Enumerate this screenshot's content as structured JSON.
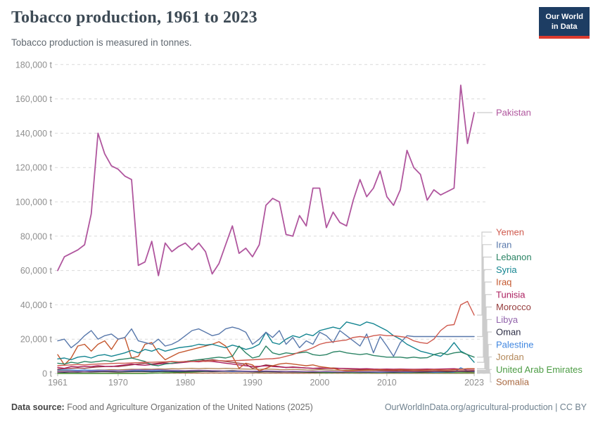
{
  "header": {
    "title": "Tobacco production, 1961 to 2023",
    "subtitle": "Tobacco production is measured in tonnes.",
    "logo": {
      "line1": "Our World",
      "line2": "in Data"
    }
  },
  "footer": {
    "source_label": "Data source:",
    "source_text": "Food and Agriculture Organization of the United Nations (2025)",
    "attribution": "OurWorldInData.org/agricultural-production | CC BY"
  },
  "chart_data": {
    "type": "line",
    "title": "Tobacco production, 1961 to 2023",
    "xlabel": "",
    "ylabel": "",
    "unit": "t",
    "ylim": [
      0,
      180000
    ],
    "grid": true,
    "grid_style": "dashed",
    "legend_position": "right",
    "y_ticks": [
      0,
      20000,
      40000,
      60000,
      80000,
      100000,
      120000,
      140000,
      160000,
      180000
    ],
    "x_ticks": [
      1961,
      1970,
      1980,
      1990,
      2000,
      2010,
      2023
    ],
    "years": [
      1961,
      1962,
      1963,
      1964,
      1965,
      1966,
      1967,
      1968,
      1969,
      1970,
      1971,
      1972,
      1973,
      1974,
      1975,
      1976,
      1977,
      1978,
      1979,
      1980,
      1981,
      1982,
      1983,
      1984,
      1985,
      1986,
      1987,
      1988,
      1989,
      1990,
      1991,
      1992,
      1993,
      1994,
      1995,
      1996,
      1997,
      1998,
      1999,
      2000,
      2001,
      2002,
      2003,
      2004,
      2005,
      2006,
      2007,
      2008,
      2009,
      2010,
      2011,
      2012,
      2013,
      2014,
      2015,
      2016,
      2017,
      2018,
      2019,
      2020,
      2021,
      2022,
      2023
    ],
    "series": [
      {
        "name": "Pakistan",
        "color": "#b0569e",
        "values": [
          60000,
          68000,
          70000,
          72000,
          75000,
          93000,
          140000,
          128000,
          121000,
          119000,
          115000,
          113000,
          63000,
          65000,
          77000,
          57000,
          76000,
          71000,
          74000,
          76000,
          72000,
          76000,
          71000,
          58000,
          64000,
          75000,
          86000,
          70000,
          73000,
          68000,
          75000,
          98000,
          102000,
          100000,
          81000,
          80000,
          92000,
          86000,
          108000,
          108000,
          85000,
          94000,
          88000,
          86000,
          101000,
          113000,
          103000,
          108000,
          118000,
          103000,
          98000,
          107000,
          130000,
          120000,
          116000,
          101000,
          107000,
          104000,
          106000,
          108000,
          168000,
          134000,
          152000
        ]
      },
      {
        "name": "Yemen",
        "color": "#cf5a4e",
        "values": [
          4500,
          4800,
          5000,
          5200,
          5000,
          5300,
          5500,
          5600,
          5800,
          6000,
          6000,
          6200,
          6300,
          6500,
          6500,
          6700,
          6800,
          7000,
          6800,
          7000,
          7000,
          7200,
          7000,
          7300,
          7500,
          7300,
          7500,
          7600,
          7800,
          8000,
          8200,
          8500,
          8600,
          9000,
          10000,
          11000,
          12500,
          13500,
          15000,
          17000,
          18000,
          18500,
          19000,
          19500,
          21000,
          21500,
          21000,
          22000,
          22500,
          22000,
          22000,
          21500,
          21000,
          19000,
          18000,
          17500,
          20000,
          25000,
          28000,
          28500,
          40000,
          42000,
          34000
        ]
      },
      {
        "name": "Iran",
        "color": "#5878ab",
        "values": [
          19000,
          20000,
          15000,
          18000,
          22000,
          25000,
          20000,
          22000,
          23000,
          20000,
          21000,
          26000,
          19000,
          18000,
          17000,
          20000,
          16000,
          17000,
          19000,
          22000,
          25000,
          26000,
          24000,
          22000,
          23000,
          26000,
          27000,
          26000,
          24000,
          17000,
          20000,
          24000,
          21000,
          25000,
          17000,
          21000,
          15000,
          19000,
          17000,
          24000,
          22000,
          18000,
          25000,
          22000,
          19000,
          16000,
          23000,
          12000,
          21500,
          16000,
          10000,
          18000,
          22000,
          21500,
          21500,
          21500,
          21500,
          21500,
          21500,
          21500,
          21500,
          21500,
          21500
        ]
      },
      {
        "name": "Lebanon",
        "color": "#2c8465",
        "values": [
          6000,
          5500,
          6500,
          6000,
          7000,
          6500,
          7000,
          7500,
          7000,
          8000,
          8500,
          9000,
          8000,
          7000,
          5000,
          4500,
          5500,
          6000,
          6500,
          7000,
          7500,
          8000,
          8500,
          9000,
          9500,
          9000,
          10000,
          16000,
          12000,
          9000,
          10000,
          16000,
          12000,
          11000,
          12000,
          11500,
          12000,
          12500,
          11000,
          10500,
          11000,
          12500,
          13000,
          12000,
          11500,
          11000,
          11500,
          10500,
          10000,
          9500,
          9500,
          9500,
          9000,
          9500,
          9000,
          9200,
          11000,
          12000,
          11000,
          12000,
          12500,
          11000,
          9500
        ]
      },
      {
        "name": "Syria",
        "color": "#148591",
        "values": [
          8500,
          9000,
          8000,
          9500,
          10000,
          9000,
          10500,
          11000,
          10000,
          11000,
          12000,
          13500,
          12000,
          14000,
          13000,
          14500,
          13000,
          14000,
          15000,
          15500,
          16000,
          17000,
          16500,
          17000,
          16000,
          15000,
          16500,
          15500,
          14000,
          15000,
          17000,
          24000,
          18000,
          17000,
          20000,
          22000,
          21000,
          23000,
          22000,
          25000,
          26000,
          27000,
          26000,
          30000,
          29000,
          28000,
          30000,
          29000,
          27000,
          25000,
          22000,
          20000,
          17000,
          15000,
          13000,
          12000,
          11000,
          10000,
          13000,
          18000,
          13000,
          11000,
          6500
        ]
      },
      {
        "name": "Iraq",
        "color": "#c4572e",
        "values": [
          11000,
          5000,
          9000,
          16000,
          17000,
          13000,
          17000,
          19000,
          14000,
          20000,
          21000,
          9000,
          10000,
          17000,
          18000,
          12000,
          8000,
          10000,
          12000,
          13000,
          14000,
          15000,
          16000,
          17000,
          18500,
          16000,
          10000,
          3000,
          6000,
          5000,
          1500,
          3000,
          4500,
          5500,
          6000,
          5500,
          5000,
          4500,
          5000,
          4000,
          3500,
          3000,
          2000,
          1500,
          1500,
          1800,
          2000,
          2000,
          2200,
          2000,
          2000,
          2200,
          2000,
          2100,
          2000,
          2000,
          2200,
          2100,
          2000,
          2200,
          2500,
          2800,
          2800
        ]
      },
      {
        "name": "Tunisia",
        "color": "#ab1d5e",
        "values": [
          3500,
          3000,
          4000,
          3800,
          4200,
          4000,
          4500,
          4200,
          4000,
          4500,
          5000,
          5500,
          5000,
          4800,
          5200,
          5500,
          6000,
          5800,
          6200,
          6500,
          7000,
          6800,
          7200,
          7000,
          6500,
          6000,
          5500,
          5000,
          4500,
          4000,
          4200,
          4500,
          4000,
          3800,
          3500,
          3600,
          3400,
          3200,
          3000,
          3200,
          3000,
          2800,
          3000,
          2900,
          2800,
          2700,
          2800,
          2600,
          2500,
          2600,
          2500,
          2600,
          2500,
          2400,
          2500,
          2600,
          2500,
          2600,
          2700,
          2800,
          2500,
          2500,
          2600
        ]
      },
      {
        "name": "Morocco",
        "color": "#953d3d",
        "values": [
          2500,
          2800,
          3000,
          3200,
          3000,
          3500,
          3800,
          4000,
          4200,
          4000,
          4500,
          5000,
          5500,
          6000,
          5500,
          6000,
          6500,
          7000,
          6500,
          7000,
          7500,
          8000,
          7500,
          8000,
          7500,
          7000,
          6500,
          6000,
          5500,
          3000,
          4000,
          5000,
          4500,
          4000,
          3500,
          3800,
          3500,
          3200,
          3000,
          2800,
          3000,
          3200,
          3000,
          2800,
          2500,
          2300,
          2200,
          2000,
          1800,
          1700,
          1600,
          1500,
          1500,
          1400,
          1500,
          1400,
          1500,
          1500,
          1400,
          1500,
          1600,
          1700,
          1800
        ]
      },
      {
        "name": "Libya",
        "color": "#9163ab",
        "values": [
          1000,
          1100,
          1200,
          1300,
          1200,
          1400,
          1500,
          1600,
          1500,
          1700,
          1800,
          2000,
          2200,
          2000,
          2100,
          2200,
          2000,
          1900,
          1800,
          1700,
          1800,
          1900,
          1800,
          1700,
          1600,
          1500,
          1600,
          1500,
          1400,
          1300,
          1400,
          1500,
          1400,
          1300,
          1200,
          1300,
          1200,
          1100,
          1200,
          1100,
          1200,
          1100,
          1000,
          1100,
          1000,
          1100,
          1000,
          1100,
          1000,
          1100,
          1200,
          1100,
          1200,
          1100,
          1200,
          1300,
          1200,
          1300,
          1400,
          1300,
          1400,
          1500,
          1500
        ]
      },
      {
        "name": "Oman",
        "color": "#2d2e45",
        "values": [
          800,
          700,
          900,
          800,
          1000,
          900,
          1000,
          1100,
          1000,
          900,
          1000,
          1100,
          1200,
          1100,
          1000,
          1100,
          1200,
          1100,
          1000,
          1100,
          1200,
          1300,
          1200,
          1100,
          1200,
          1300,
          1400,
          1300,
          1200,
          1100,
          1000,
          1100,
          1000,
          900,
          1000,
          900,
          1000,
          900,
          800,
          900,
          1000,
          900,
          800,
          900,
          1000,
          900,
          800,
          900,
          1000,
          900,
          800,
          900,
          1000,
          900,
          800,
          900,
          1000,
          1100,
          1000,
          1100,
          1200,
          1100,
          1200
        ]
      },
      {
        "name": "Palestine",
        "color": "#4187e0",
        "values": [
          2000,
          2100,
          2000,
          1900,
          2000,
          1800,
          1900,
          1800,
          1700,
          1800,
          1700,
          1600,
          1700,
          1600,
          1500,
          1600,
          1500,
          1400,
          1500,
          1400,
          1300,
          1400,
          1300,
          1200,
          1300,
          1200,
          1100,
          1200,
          1100,
          1000,
          1100,
          1200,
          1100,
          1000,
          1100,
          1000,
          900,
          1000,
          900,
          1000,
          900,
          800,
          900,
          800,
          900,
          800,
          700,
          800,
          700,
          800,
          700,
          800,
          700,
          800,
          900,
          800,
          700,
          800,
          900,
          800,
          3300,
          1500,
          1000
        ]
      },
      {
        "name": "Jordan",
        "color": "#b3885a",
        "values": [
          1500,
          1600,
          1800,
          1700,
          2000,
          1900,
          2100,
          2000,
          2200,
          2100,
          2300,
          2500,
          2400,
          2600,
          2500,
          2700,
          2600,
          2800,
          2700,
          2900,
          3000,
          2800,
          3000,
          2900,
          2800,
          3000,
          2900,
          2700,
          2600,
          2500,
          2400,
          2600,
          2500,
          2300,
          2200,
          2400,
          2300,
          2100,
          2000,
          2200,
          2100,
          1900,
          1800,
          2000,
          1900,
          1700,
          1600,
          1800,
          1700,
          1500,
          1400,
          1600,
          1500,
          1300,
          1200,
          1400,
          1300,
          1100,
          1000,
          1200,
          1100,
          900,
          800
        ]
      },
      {
        "name": "United Arab Emirates",
        "color": "#4c9c44",
        "values": [
          0,
          0,
          0,
          0,
          0,
          0,
          0,
          0,
          0,
          0,
          0,
          0,
          0,
          0,
          200,
          300,
          400,
          500,
          600,
          700,
          800,
          1000,
          1200,
          1500,
          1300,
          1600,
          1800,
          1500,
          1200,
          1000,
          900,
          1100,
          1000,
          1200,
          1100,
          900,
          800,
          700,
          600,
          500,
          400,
          500,
          600,
          500,
          400,
          500,
          400,
          500,
          400,
          500,
          400,
          500,
          400,
          500,
          400,
          500,
          400,
          500,
          400,
          500,
          400,
          400,
          400
        ]
      },
      {
        "name": "Somalia",
        "color": "#a96a42",
        "values": [
          150,
          160,
          150,
          170,
          160,
          180,
          170,
          180,
          190,
          200,
          200,
          210,
          200,
          220,
          210,
          230,
          220,
          240,
          230,
          250,
          250,
          260,
          250,
          270,
          260,
          280,
          270,
          280,
          290,
          300,
          280,
          260,
          250,
          240,
          230,
          220,
          210,
          200,
          190,
          180,
          170,
          160,
          150,
          160,
          150,
          140,
          150,
          140,
          130,
          140,
          130,
          140,
          130,
          120,
          130,
          120,
          130,
          120,
          130,
          120,
          130,
          120,
          120
        ]
      }
    ]
  }
}
